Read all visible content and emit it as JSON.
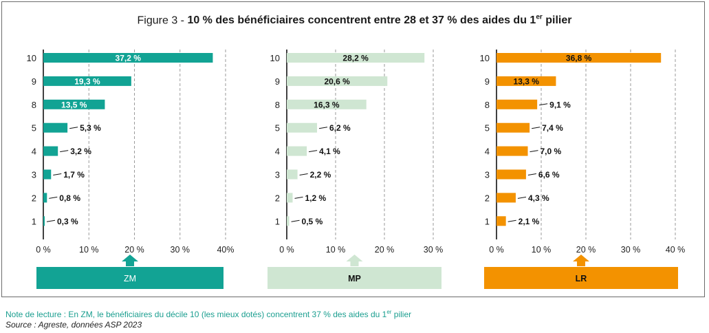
{
  "figure": {
    "title_prefix": "Figure 3 - ",
    "title_main": "10 % des bénéficiaires concentrent entre 28 et 37 % des aides du 1",
    "title_sup": "er",
    "title_suffix": " pilier"
  },
  "note": {
    "text": "Note de  lecture : En ZM, le bénéficiaires du décile 10 (les mieux dotés) concentrent 37 % des aides du 1",
    "sup": "er",
    "suffix": " pilier"
  },
  "source": "Source : Agreste, données ASP 2023",
  "chart_data": [
    {
      "type": "bar",
      "orientation": "horizontal",
      "name": "ZM",
      "color": "#12a394",
      "label_color": "#ffffff",
      "categories": [
        "10",
        "9",
        "8",
        "5",
        "4",
        "3",
        "2",
        "1"
      ],
      "values": [
        37.2,
        19.3,
        13.5,
        5.3,
        3.2,
        1.7,
        0.8,
        0.3
      ],
      "value_labels": [
        "37,2 %",
        "19,3 %",
        "13,5 %",
        "5,3 %",
        "3,2 %",
        "1,7 %",
        "0,8 %",
        "0,3 %"
      ],
      "inside_count": 3,
      "xlim": [
        0,
        40
      ],
      "xticks": [
        0,
        10,
        20,
        30,
        40
      ],
      "xtick_labels": [
        "0 %",
        "10 %",
        "20 %",
        "30 %",
        "40%"
      ],
      "grid": true
    },
    {
      "type": "bar",
      "orientation": "horizontal",
      "name": "MP",
      "color": "#cfe6d2",
      "label_color": "#111111",
      "categories": [
        "10",
        "9",
        "8",
        "5",
        "4",
        "3",
        "2",
        "1"
      ],
      "values": [
        28.2,
        20.6,
        16.3,
        6.2,
        4.1,
        2.2,
        1.2,
        0.5
      ],
      "value_labels": [
        "28,2 %",
        "20,6 %",
        "16,3 %",
        "6,2 %",
        "4,1 %",
        "2,2 %",
        "1,2 %",
        "0,5 %"
      ],
      "inside_count": 3,
      "xlim": [
        0,
        30
      ],
      "xticks": [
        0,
        10,
        20,
        30
      ],
      "xtick_labels": [
        "0 %",
        "10 %",
        "20 %",
        "30 %"
      ],
      "grid": true
    },
    {
      "type": "bar",
      "orientation": "horizontal",
      "name": "LR",
      "color": "#f39200",
      "label_color": "#111111",
      "categories": [
        "10",
        "9",
        "8",
        "5",
        "4",
        "3",
        "2",
        "1"
      ],
      "values": [
        36.8,
        13.3,
        9.1,
        7.4,
        7.0,
        6.6,
        4.3,
        2.1
      ],
      "value_labels": [
        "36,8 %",
        "13,3 %",
        "9,1 %",
        "7,4 %",
        "7,0 %",
        "6,6 %",
        "4,3 %",
        "2,1 %"
      ],
      "inside_count": 2,
      "xlim": [
        0,
        40
      ],
      "xticks": [
        0,
        10,
        20,
        30,
        40
      ],
      "xtick_labels": [
        "0 %",
        "10 %",
        "20 %",
        "30 %",
        "40 %"
      ],
      "grid": true
    }
  ],
  "legend": [
    {
      "label": "ZM",
      "color": "#12a394",
      "text_color": "#ffffff",
      "bold": false
    },
    {
      "label": "MP",
      "color": "#cfe6d2",
      "text_color": "#111111",
      "bold": true
    },
    {
      "label": "LR",
      "color": "#f39200",
      "text_color": "#111111",
      "bold": true
    }
  ]
}
